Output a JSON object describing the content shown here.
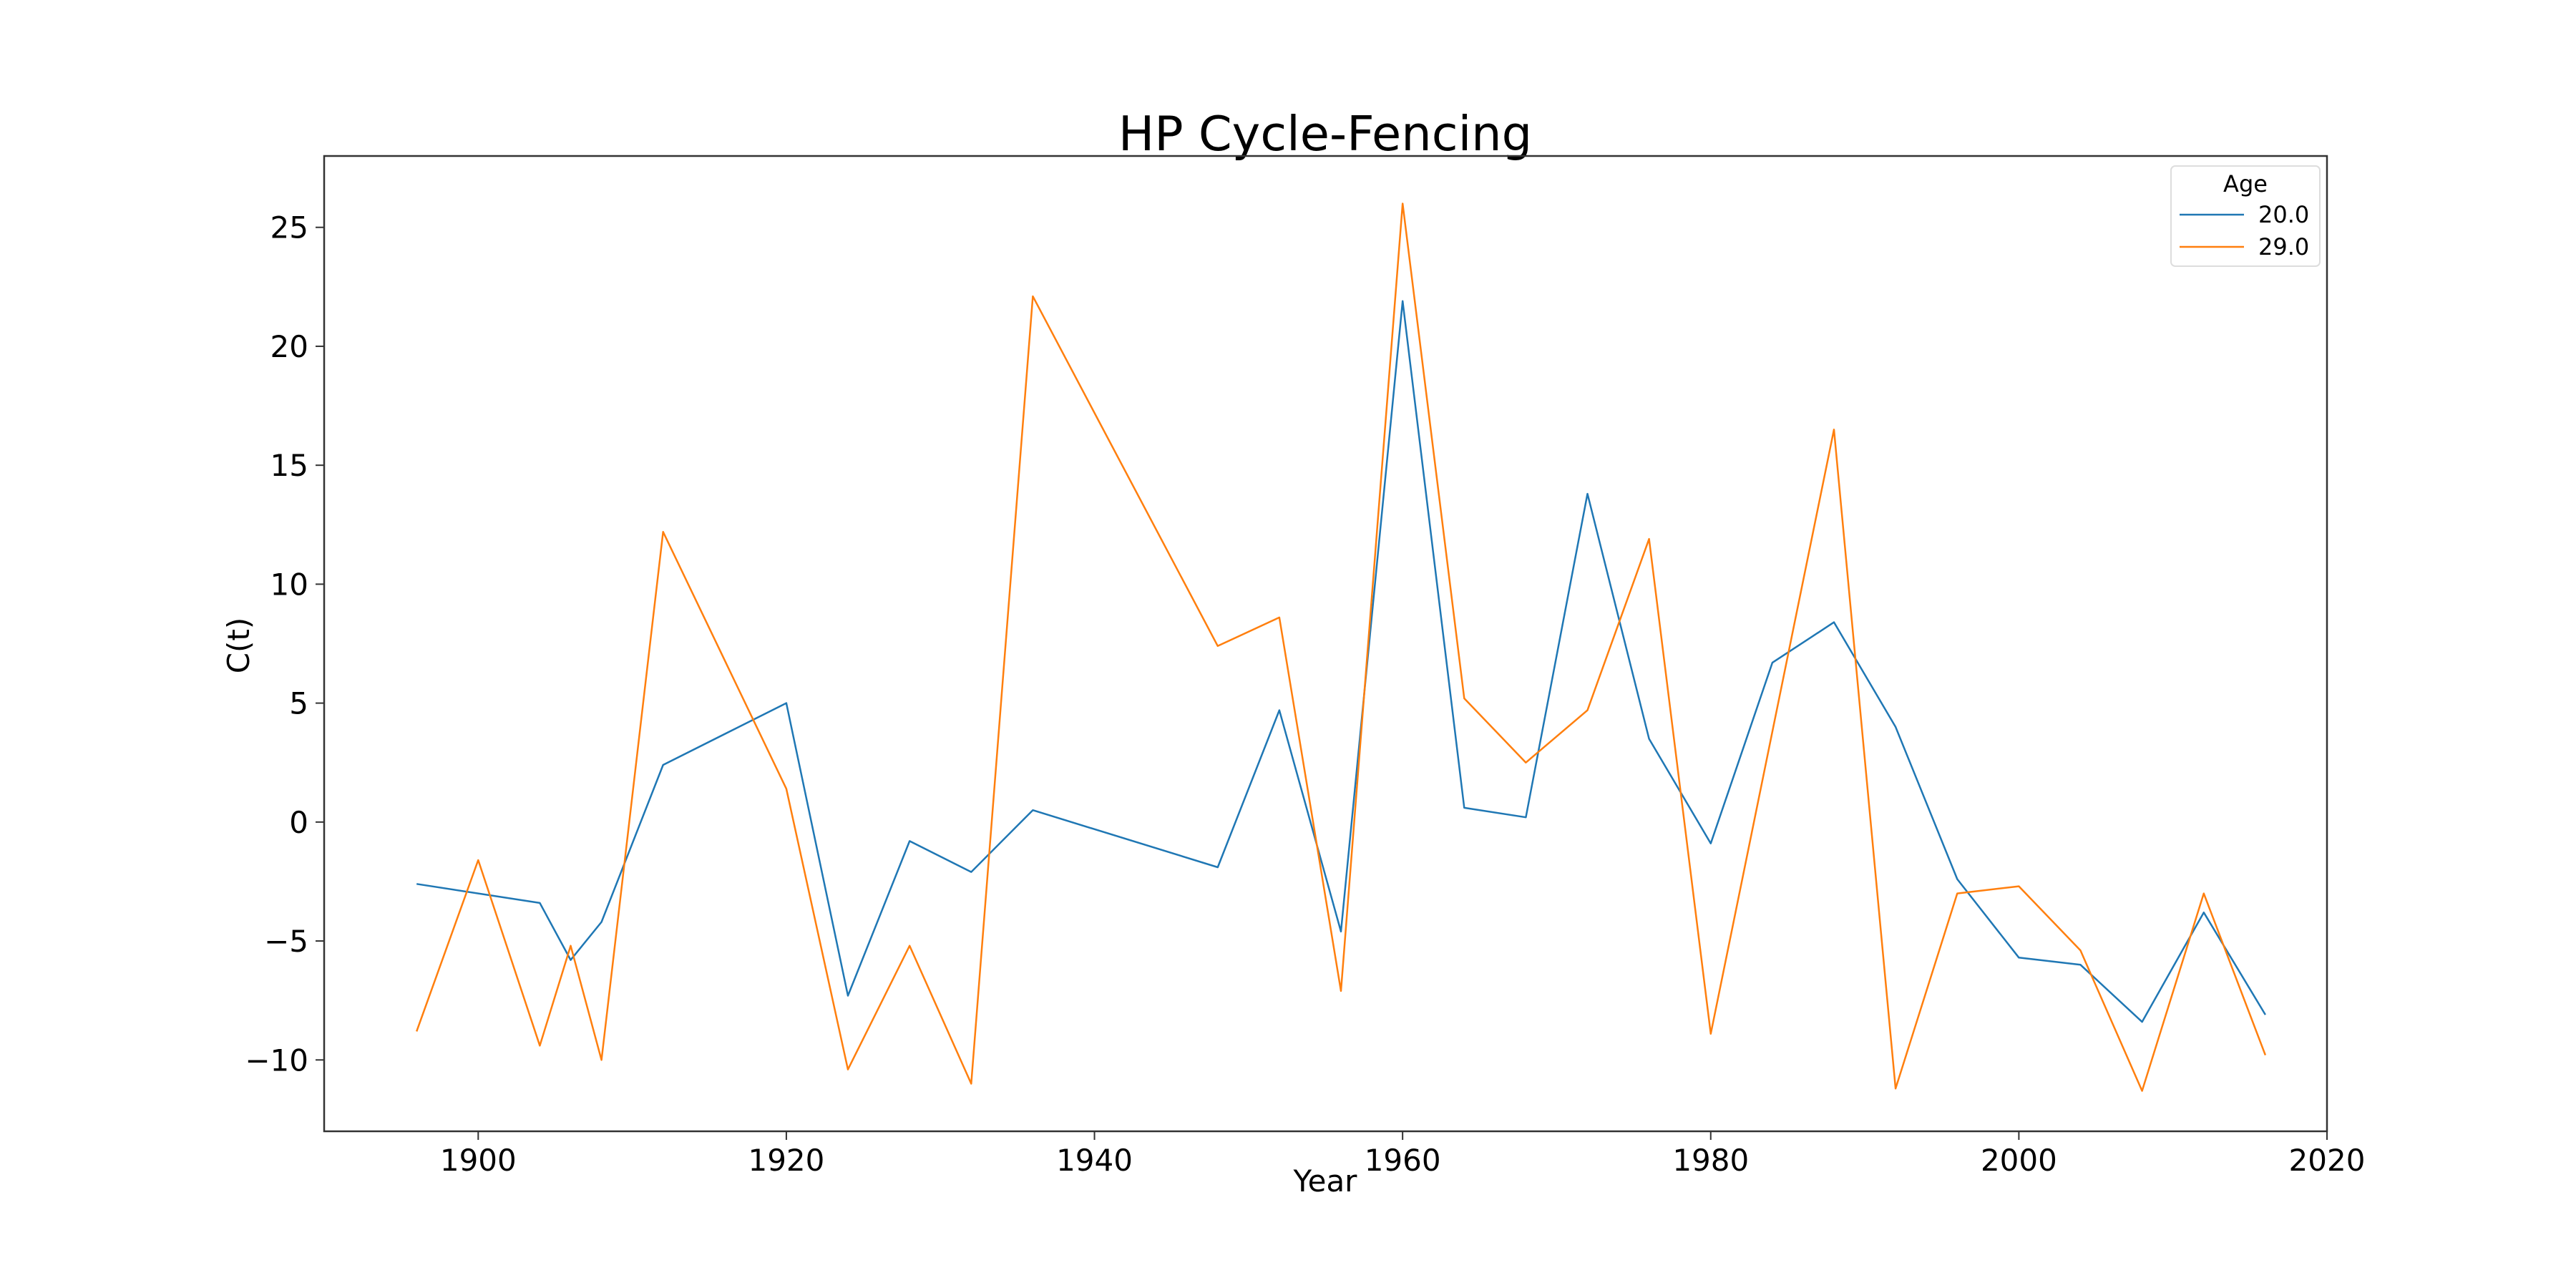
{
  "chart_data": {
    "type": "line",
    "title": "HP Cycle-Fencing",
    "xlabel": "Year",
    "ylabel": "C(t)",
    "xlim": [
      1890,
      2020
    ],
    "ylim": [
      -13,
      28
    ],
    "x_ticks": [
      1900,
      1920,
      1940,
      1960,
      1980,
      2000,
      2020
    ],
    "y_ticks": [
      -10,
      -5,
      0,
      5,
      10,
      15,
      20,
      25
    ],
    "grid": false,
    "legend": {
      "title": "Age",
      "placement": "top-right"
    },
    "series": [
      {
        "name": "20.0",
        "color": "#1f77b4",
        "x": [
          1896,
          1904,
          1906,
          1908,
          1912,
          1920,
          1924,
          1928,
          1932,
          1936,
          1948,
          1952,
          1956,
          1960,
          1964,
          1968,
          1972,
          1976,
          1980,
          1984,
          1988,
          1992,
          1996,
          2000,
          2004,
          2008,
          2012,
          2016
        ],
        "y": [
          -2.6,
          -3.4,
          -5.8,
          -4.2,
          2.4,
          5.0,
          -7.3,
          -0.8,
          -2.1,
          0.5,
          -1.9,
          4.7,
          -4.6,
          21.9,
          0.6,
          0.2,
          13.8,
          3.5,
          -0.9,
          6.7,
          8.4,
          4.0,
          -2.4,
          -5.7,
          -6.0,
          -8.4,
          -3.8,
          -8.1
        ]
      },
      {
        "name": "29.0",
        "color": "#ff7f0e",
        "x": [
          1896,
          1900,
          1904,
          1906,
          1908,
          1912,
          1920,
          1924,
          1928,
          1932,
          1936,
          1948,
          1952,
          1956,
          1960,
          1964,
          1968,
          1972,
          1976,
          1980,
          1988,
          1992,
          1996,
          2000,
          2004,
          2008,
          2012,
          2016
        ],
        "y": [
          -8.8,
          -1.6,
          -9.4,
          -5.2,
          -10.0,
          12.2,
          1.4,
          -10.4,
          -5.2,
          -11.0,
          22.1,
          7.4,
          8.6,
          -7.1,
          26.0,
          5.2,
          2.5,
          4.7,
          11.9,
          -8.9,
          16.5,
          -11.2,
          -3.0,
          -2.7,
          -5.4,
          -11.3,
          -3.0,
          -9.8
        ]
      }
    ]
  }
}
